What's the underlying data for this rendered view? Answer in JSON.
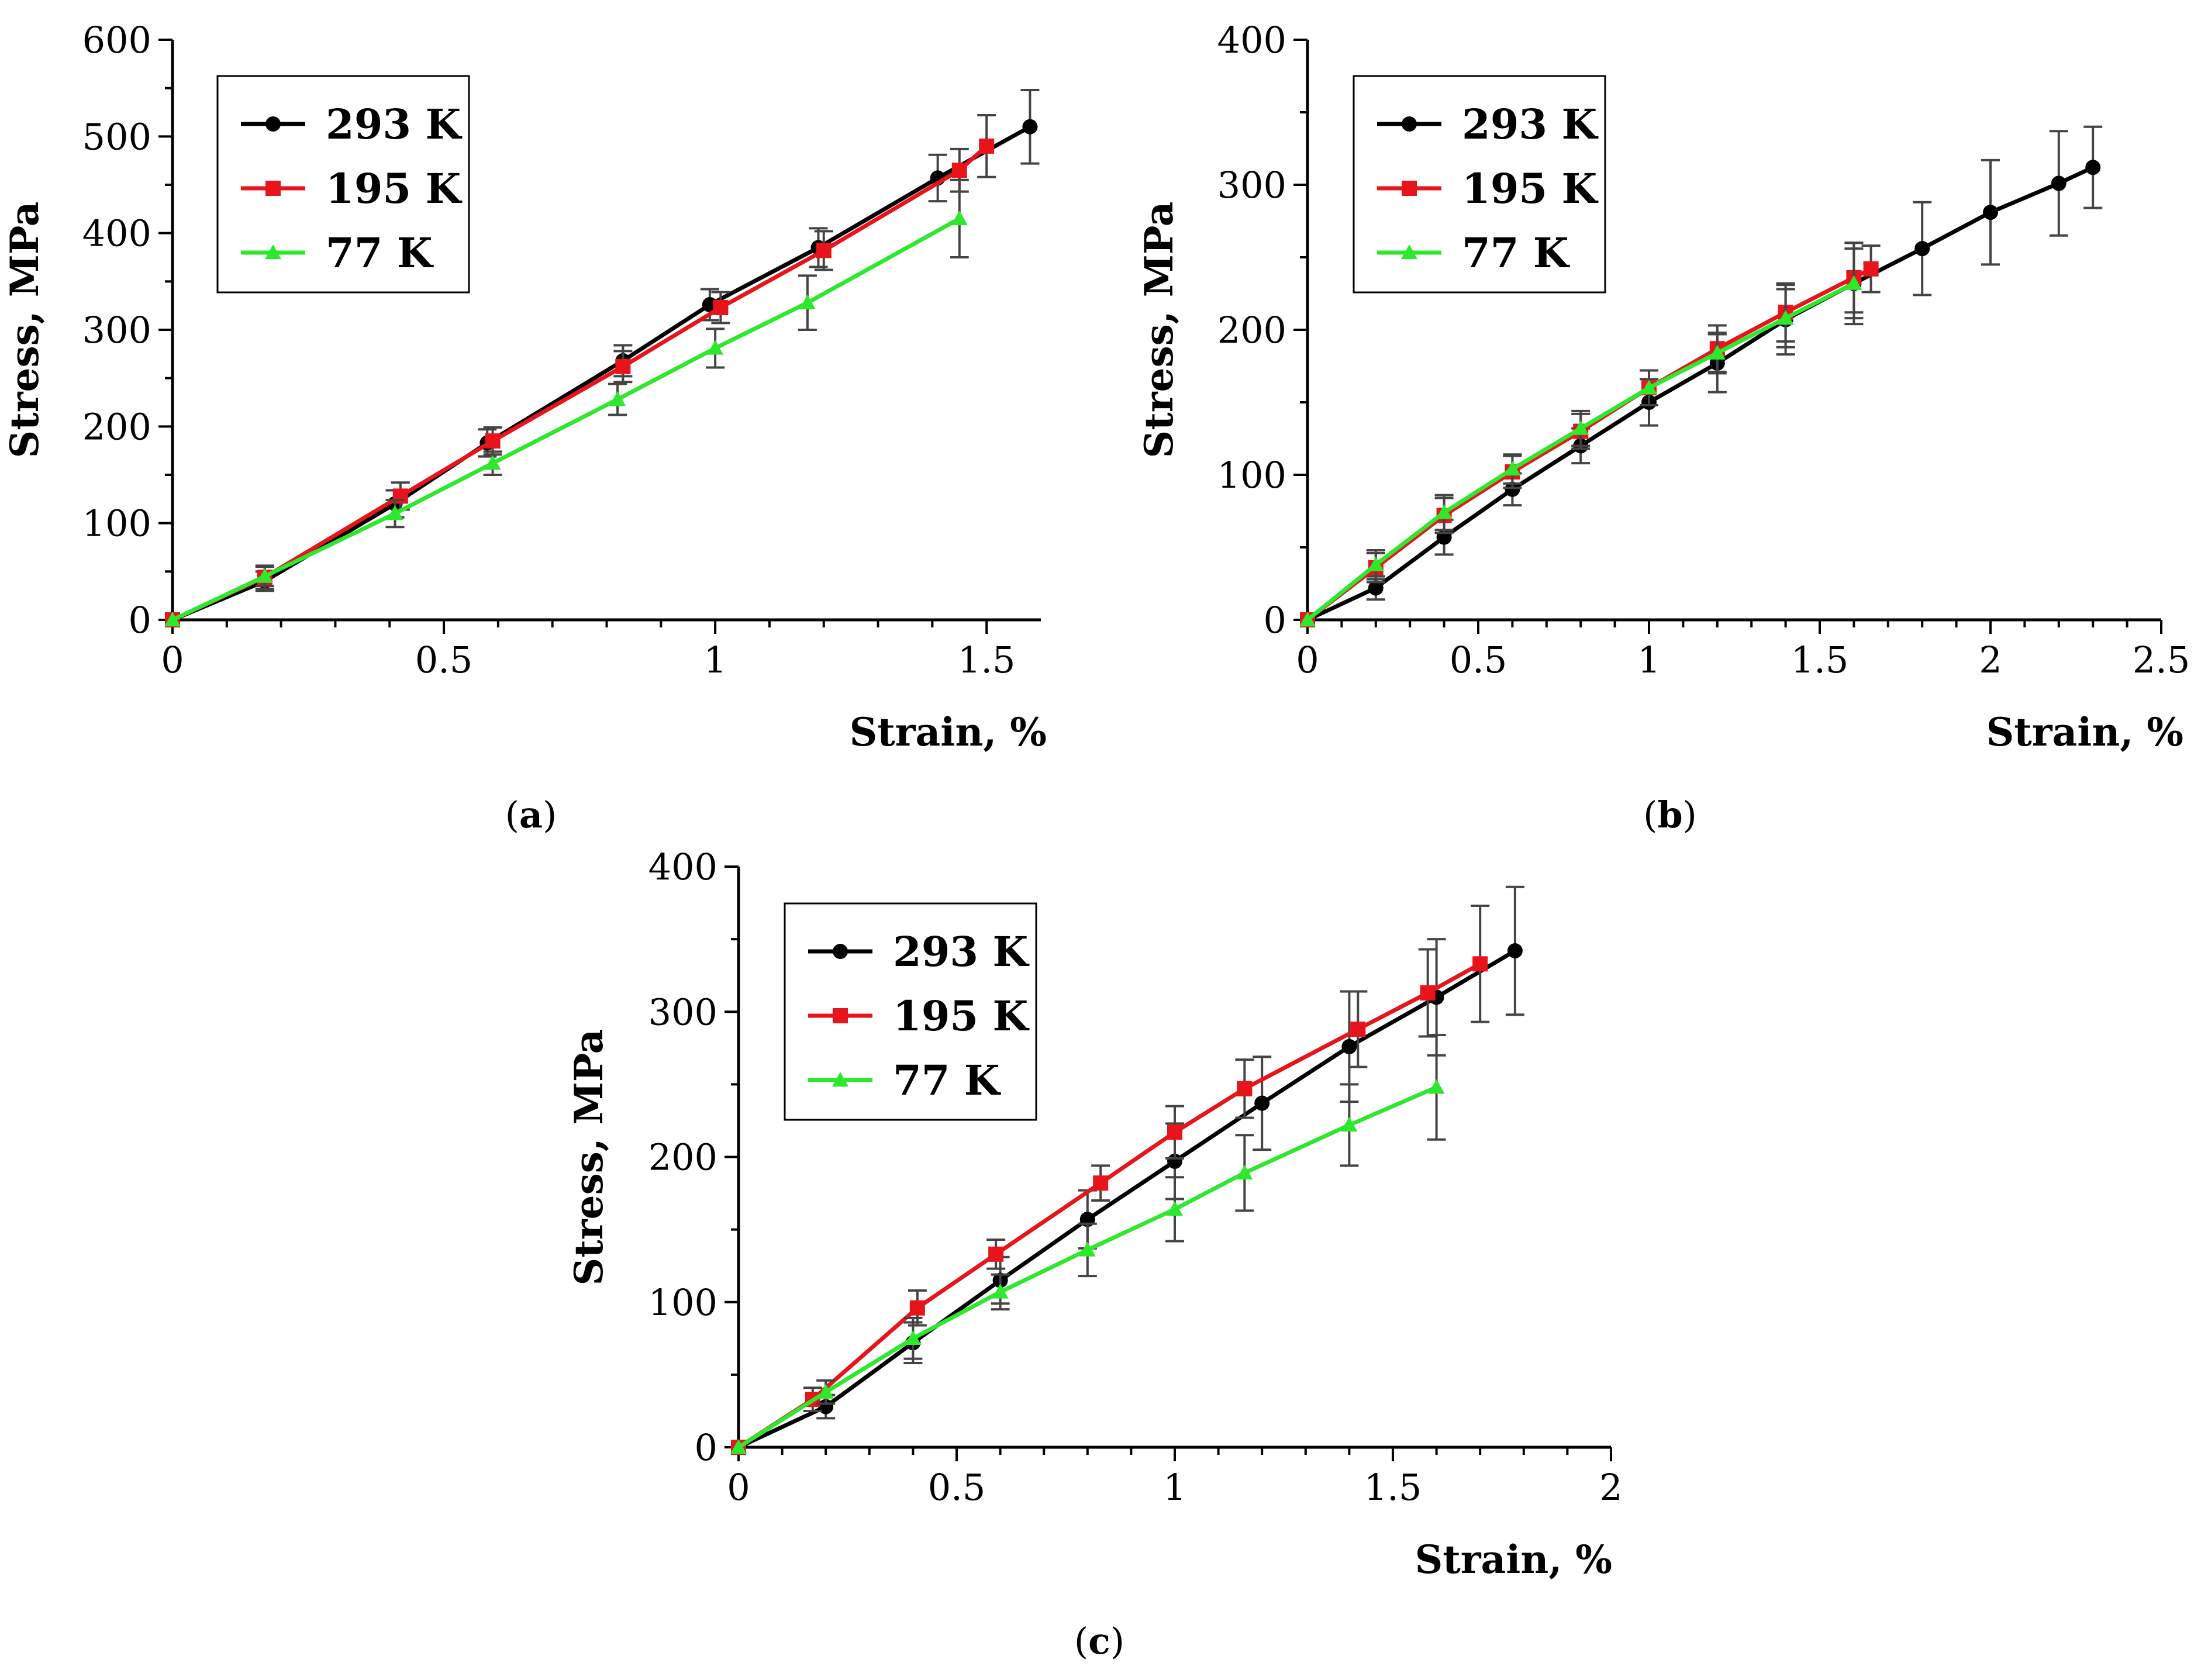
{
  "chart_data": [
    {
      "type": "line",
      "panel_label": "a",
      "xlabel": "Strain, %",
      "ylabel": "Stress, MPa",
      "xlim": [
        0,
        1.6
      ],
      "ylim": [
        0,
        600
      ],
      "xticks": [
        "0",
        "0.5",
        "1",
        "1.5"
      ],
      "yticks": [
        "0",
        "100",
        "200",
        "300",
        "400",
        "500",
        "600"
      ],
      "legend_position": "top-left",
      "series": [
        {
          "name": "293 K",
          "color": "#000000",
          "marker": "circle",
          "x": [
            0,
            0.17,
            0.41,
            0.58,
            0.83,
            0.99,
            1.19,
            1.41,
            1.58
          ],
          "y": [
            0,
            40,
            120,
            183,
            268,
            326,
            385,
            457,
            510
          ],
          "err": [
            0,
            10,
            14,
            14,
            16,
            16,
            20,
            24,
            38
          ]
        },
        {
          "name": "195 K",
          "color": "#e8141c",
          "marker": "square",
          "x": [
            0,
            0.17,
            0.42,
            0.59,
            0.83,
            1.01,
            1.2,
            1.45,
            1.5
          ],
          "y": [
            0,
            44,
            128,
            185,
            262,
            323,
            382,
            465,
            490
          ],
          "err": [
            0,
            12,
            14,
            14,
            16,
            16,
            20,
            22,
            32
          ]
        },
        {
          "name": "77 K",
          "color": "#2ee82e",
          "marker": "triangle",
          "x": [
            0,
            0.17,
            0.41,
            0.59,
            0.82,
            1.0,
            1.17,
            1.45
          ],
          "y": [
            0,
            45,
            110,
            162,
            228,
            281,
            328,
            415
          ],
          "err": [
            0,
            10,
            14,
            12,
            16,
            20,
            28,
            40
          ]
        }
      ]
    },
    {
      "type": "line",
      "panel_label": "b",
      "xlabel": "Strain, %",
      "ylabel": "Stress, MPa",
      "xlim": [
        0,
        2.5
      ],
      "ylim": [
        0,
        400
      ],
      "xticks": [
        "0",
        "0.5",
        "1",
        "1.5",
        "2",
        "2.5"
      ],
      "yticks": [
        "0",
        "100",
        "200",
        "300",
        "400"
      ],
      "legend_position": "top-left",
      "series": [
        {
          "name": "293 K",
          "color": "#000000",
          "marker": "circle",
          "x": [
            0,
            0.2,
            0.4,
            0.6,
            0.8,
            1.0,
            1.2,
            1.4,
            1.6,
            1.8,
            2.0,
            2.2,
            2.3
          ],
          "y": [
            0,
            22,
            57,
            90,
            120,
            150,
            177,
            207,
            232,
            256,
            281,
            301,
            312
          ],
          "err": [
            0,
            8,
            12,
            11,
            12,
            16,
            20,
            24,
            28,
            32,
            36,
            36,
            28
          ]
        },
        {
          "name": "195 K",
          "color": "#e8141c",
          "marker": "square",
          "x": [
            0,
            0.2,
            0.4,
            0.6,
            0.8,
            1.0,
            1.2,
            1.4,
            1.6,
            1.65
          ],
          "y": [
            0,
            36,
            72,
            102,
            130,
            160,
            187,
            212,
            236,
            242
          ],
          "err": [
            0,
            10,
            12,
            11,
            12,
            12,
            16,
            20,
            24,
            16
          ]
        },
        {
          "name": "77 K",
          "color": "#2ee82e",
          "marker": "triangle",
          "x": [
            0,
            0.2,
            0.4,
            0.6,
            0.8,
            1.0,
            1.2,
            1.4,
            1.6
          ],
          "y": [
            0,
            38,
            74,
            104,
            132,
            160,
            184,
            208,
            232
          ],
          "err": [
            0,
            10,
            12,
            10,
            12,
            12,
            14,
            20,
            24
          ]
        }
      ]
    },
    {
      "type": "line",
      "panel_label": "c",
      "xlabel": "Strain, %",
      "ylabel": "Stress, MPa",
      "xlim": [
        0,
        2
      ],
      "ylim": [
        0,
        400
      ],
      "xticks": [
        "0",
        "0.5",
        "1",
        "1.5",
        "2"
      ],
      "yticks": [
        "0",
        "100",
        "200",
        "300",
        "400"
      ],
      "legend_position": "top-left",
      "series": [
        {
          "name": "293 K",
          "color": "#000000",
          "marker": "circle",
          "x": [
            0,
            0.2,
            0.4,
            0.6,
            0.8,
            1.0,
            1.2,
            1.4,
            1.6,
            1.78
          ],
          "y": [
            0,
            28,
            72,
            115,
            157,
            197,
            237,
            276,
            310,
            342
          ],
          "err": [
            0,
            8,
            14,
            16,
            20,
            26,
            32,
            38,
            40,
            44
          ]
        },
        {
          "name": "195 K",
          "color": "#e8141c",
          "marker": "square",
          "x": [
            0,
            0.17,
            0.41,
            0.59,
            0.83,
            1.0,
            1.16,
            1.42,
            1.58,
            1.7
          ],
          "y": [
            0,
            33,
            96,
            133,
            182,
            217,
            247,
            288,
            313,
            333
          ],
          "err": [
            0,
            8,
            12,
            10,
            12,
            18,
            20,
            26,
            30,
            40
          ]
        },
        {
          "name": "77 K",
          "color": "#2ee82e",
          "marker": "triangle",
          "x": [
            0,
            0.2,
            0.4,
            0.6,
            0.8,
            1.0,
            1.16,
            1.4,
            1.6
          ],
          "y": [
            0,
            38,
            75,
            107,
            136,
            164,
            189,
            222,
            248
          ],
          "err": [
            0,
            8,
            14,
            12,
            18,
            22,
            26,
            28,
            36
          ]
        }
      ]
    }
  ]
}
